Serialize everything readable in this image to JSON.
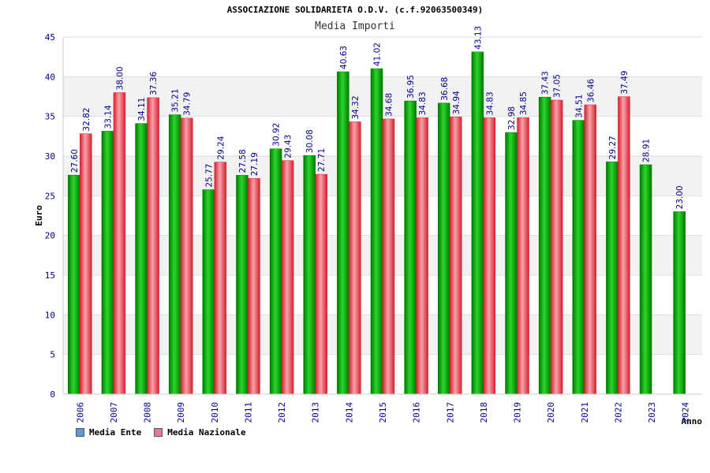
{
  "header": {
    "title": "ASSOCIAZIONE SOLIDARIETA O.D.V. (c.f.92063500349)",
    "subtitle": "Media Importi"
  },
  "legend": {
    "items": [
      {
        "label": "Media Ente",
        "color": "#5b9bd5"
      },
      {
        "label": "Media Nazionale",
        "color": "#e07b9a"
      }
    ]
  },
  "colors": {
    "ente_dark": "#007a00",
    "ente_light": "#2bd62b",
    "nazionale_dark": "#d81f2f",
    "nazionale_light": "#f7a3aa",
    "grid_band": "#f2f2f2",
    "axis_text": "#00008b",
    "value_text": "#00008b"
  },
  "chart_data": {
    "type": "bar",
    "title": "ASSOCIAZIONE SOLIDARIETA O.D.V. (c.f.92063500349)",
    "subtitle": "Media Importi",
    "xlabel": "Anno",
    "ylabel": "Euro",
    "ylim": [
      0,
      45
    ],
    "yticks": [
      0,
      5,
      10,
      15,
      20,
      25,
      30,
      35,
      40,
      45
    ],
    "grid": true,
    "legend_position": "bottom-left",
    "categories": [
      "2006",
      "2007",
      "2008",
      "2009",
      "2010",
      "2011",
      "2012",
      "2013",
      "2014",
      "2015",
      "2016",
      "2017",
      "2018",
      "2019",
      "2020",
      "2021",
      "2022",
      "2023",
      "2024"
    ],
    "series": [
      {
        "name": "Media Ente",
        "values": [
          27.6,
          33.14,
          34.11,
          35.21,
          25.77,
          27.58,
          30.92,
          30.08,
          40.63,
          41.02,
          36.95,
          36.68,
          43.13,
          32.98,
          37.43,
          34.51,
          29.27,
          28.91,
          23.0
        ]
      },
      {
        "name": "Media Nazionale",
        "values": [
          32.82,
          38.0,
          37.36,
          34.79,
          29.24,
          27.19,
          29.43,
          27.71,
          34.32,
          34.68,
          34.83,
          34.94,
          34.83,
          34.85,
          37.05,
          36.46,
          37.49,
          null,
          null
        ]
      }
    ],
    "data_labels": [
      [
        "27.60",
        "33.14",
        "34.11",
        "35.21",
        "25.77",
        "27.58",
        "30.92",
        "30.08",
        "40.63",
        "41.02",
        "36.95",
        "36.68",
        "43.13",
        "32.98",
        "37.43",
        "34.51",
        "29.27",
        "28.91",
        "23.00"
      ],
      [
        "32.82",
        "38.00",
        "37.36",
        "34.79",
        "29.24",
        "27.19",
        "29.43",
        "27.71",
        "34.32",
        "34.68",
        "34.83",
        "34.94",
        "34.83",
        "34.85",
        "37.05",
        "36.46",
        "37.49",
        "",
        ""
      ]
    ]
  }
}
